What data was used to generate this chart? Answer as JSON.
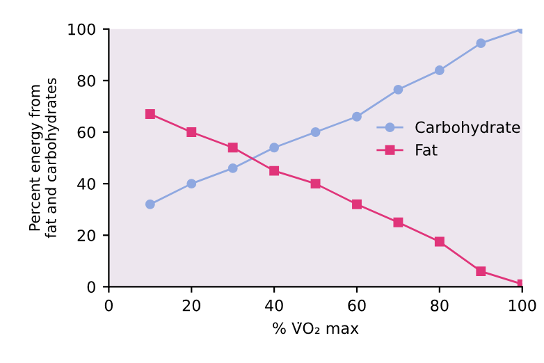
{
  "chart_data": {
    "type": "line",
    "xlabel": "% V̇O₂ max",
    "ylabel": "Percent energy from\nfat and carbohydrates",
    "x": [
      10,
      20,
      30,
      40,
      50,
      60,
      70,
      80,
      90,
      100
    ],
    "series": [
      {
        "name": "Carbohydrate",
        "color": "#8fa8e0",
        "marker": "circle",
        "values": [
          32,
          40,
          46,
          54,
          60,
          66,
          76.5,
          84,
          94.5,
          100
        ]
      },
      {
        "name": "Fat",
        "color": "#e0357a",
        "marker": "square",
        "values": [
          67,
          60,
          54,
          45,
          40,
          32,
          25,
          17.5,
          6,
          1
        ]
      }
    ],
    "xlim": [
      0,
      100
    ],
    "xticks": [
      0,
      20,
      40,
      60,
      80,
      100
    ],
    "ylim": [
      0,
      100
    ],
    "yticks": [
      0,
      20,
      40,
      60,
      80,
      100
    ],
    "grid": false,
    "legend": "right",
    "line_style": "solid"
  }
}
